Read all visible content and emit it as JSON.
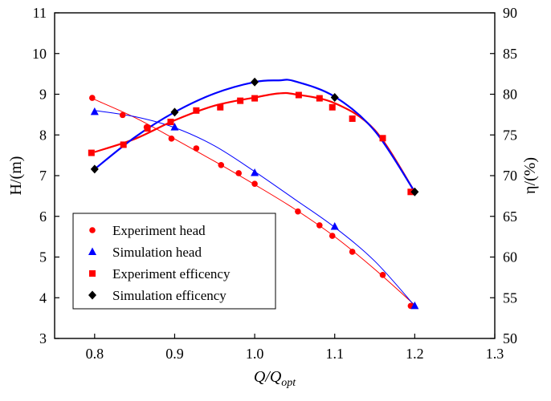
{
  "chart_data": {
    "type": "scatter",
    "xlabel": "Q/Q",
    "xlabel_sub": "opt",
    "ylabel_left": "H/(m)",
    "ylabel_right": "η/(%)",
    "xlim": [
      0.75,
      1.3
    ],
    "ylim_left": [
      3,
      11
    ],
    "ylim_right": [
      50,
      90
    ],
    "xticks": [
      "0.8",
      "0.9",
      "1.0",
      "1.1",
      "1.2",
      "1.3"
    ],
    "yticks_left": [
      "3",
      "4",
      "5",
      "6",
      "7",
      "8",
      "9",
      "10",
      "11"
    ],
    "yticks_right": [
      "50",
      "55",
      "60",
      "65",
      "70",
      "75",
      "80",
      "85",
      "90"
    ],
    "grid": false,
    "legend_position": "lower-left",
    "series": [
      {
        "name": "Experiment head",
        "axis": "left",
        "marker": "circle",
        "color": "#ff0000",
        "x": [
          0.797,
          0.835,
          0.865,
          0.896,
          0.927,
          0.958,
          0.98,
          1.0,
          1.054,
          1.081,
          1.097,
          1.122,
          1.16,
          1.195
        ],
        "y": [
          8.91,
          8.49,
          8.19,
          7.91,
          7.67,
          7.26,
          7.06,
          6.8,
          6.12,
          5.78,
          5.52,
          5.13,
          4.56,
          3.8
        ],
        "fit_color": "#ff0000",
        "fit": [
          [
            0.8,
            8.87
          ],
          [
            0.85,
            8.43
          ],
          [
            0.9,
            7.9
          ],
          [
            0.95,
            7.35
          ],
          [
            1.0,
            6.78
          ],
          [
            1.05,
            6.18
          ],
          [
            1.1,
            5.5
          ],
          [
            1.15,
            4.7
          ],
          [
            1.2,
            3.82
          ]
        ]
      },
      {
        "name": "Simulation head",
        "axis": "left",
        "marker": "triangle",
        "color": "#0000ff",
        "x": [
          0.8,
          0.9,
          1.0,
          1.1,
          1.2
        ],
        "y": [
          8.57,
          8.19,
          7.07,
          5.75,
          3.8
        ],
        "fit_color": "#0000ff",
        "fit": [
          [
            0.8,
            8.6
          ],
          [
            0.85,
            8.45
          ],
          [
            0.9,
            8.18
          ],
          [
            0.95,
            7.73
          ],
          [
            1.0,
            7.1
          ],
          [
            1.05,
            6.42
          ],
          [
            1.1,
            5.73
          ],
          [
            1.15,
            4.9
          ],
          [
            1.2,
            3.8
          ]
        ]
      },
      {
        "name": "Experiment efficency",
        "axis": "right",
        "marker": "square",
        "color": "#ff0000",
        "x": [
          0.796,
          0.836,
          0.866,
          0.895,
          0.927,
          0.957,
          0.982,
          1.0,
          1.055,
          1.081,
          1.097,
          1.122,
          1.16,
          1.195
        ],
        "y": [
          72.8,
          73.8,
          75.8,
          76.6,
          78.0,
          78.4,
          79.2,
          79.5,
          79.9,
          79.5,
          78.4,
          77.0,
          74.6,
          68.0
        ],
        "fit_color": "#ff0000",
        "fit": [
          [
            0.8,
            72.9
          ],
          [
            0.85,
            74.5
          ],
          [
            0.9,
            76.8
          ],
          [
            0.95,
            78.6
          ],
          [
            1.0,
            79.6
          ],
          [
            1.03,
            80.1
          ],
          [
            1.05,
            80.0
          ],
          [
            1.1,
            78.9
          ],
          [
            1.15,
            75.6
          ],
          [
            1.2,
            68.0
          ]
        ]
      },
      {
        "name": "Simulation efficency",
        "axis": "right",
        "marker": "diamond",
        "color": "#000000",
        "x": [
          0.8,
          0.9,
          1.0,
          1.1,
          1.2
        ],
        "y": [
          70.8,
          77.8,
          81.5,
          79.6,
          68.0
        ],
        "fit_color": "#0000ff",
        "fit": [
          [
            0.8,
            70.8
          ],
          [
            0.85,
            74.7
          ],
          [
            0.9,
            77.8
          ],
          [
            0.95,
            80.1
          ],
          [
            1.0,
            81.5
          ],
          [
            1.03,
            81.7
          ],
          [
            1.05,
            81.6
          ],
          [
            1.1,
            79.7
          ],
          [
            1.15,
            75.5
          ],
          [
            1.2,
            68.0
          ]
        ]
      }
    ]
  }
}
